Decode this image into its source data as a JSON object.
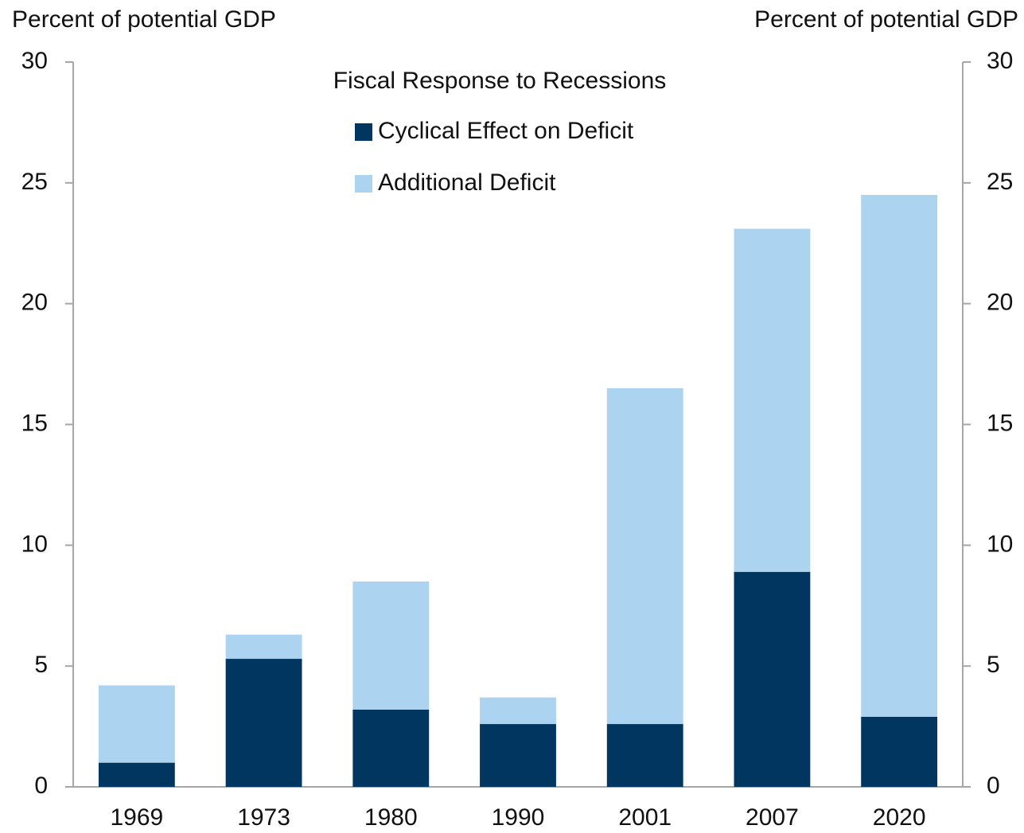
{
  "chart_data": {
    "type": "stacked_bar",
    "title": "Fiscal Response to Recessions",
    "y_label": "Percent of potential GDP",
    "y2_label": "Percent of potential GDP",
    "categories": [
      "1969",
      "1973",
      "1980",
      "1990",
      "2001",
      "2007",
      "2020"
    ],
    "series": [
      {
        "name": "Cyclical Effect on Deficit",
        "color": "#003660",
        "values": [
          1.0,
          5.3,
          3.2,
          2.6,
          2.6,
          8.9,
          2.9
        ]
      },
      {
        "name": "Additional Deficit",
        "color": "#acd3ef",
        "values": [
          3.2,
          1.0,
          5.3,
          1.1,
          13.9,
          14.2,
          21.6
        ]
      }
    ],
    "ylim": [
      0,
      30
    ],
    "yticks": [
      0,
      5,
      10,
      15,
      20,
      25,
      30
    ],
    "y2lim": [
      0,
      30
    ],
    "y2ticks": [
      0,
      5,
      10,
      15,
      20,
      25,
      30
    ]
  }
}
